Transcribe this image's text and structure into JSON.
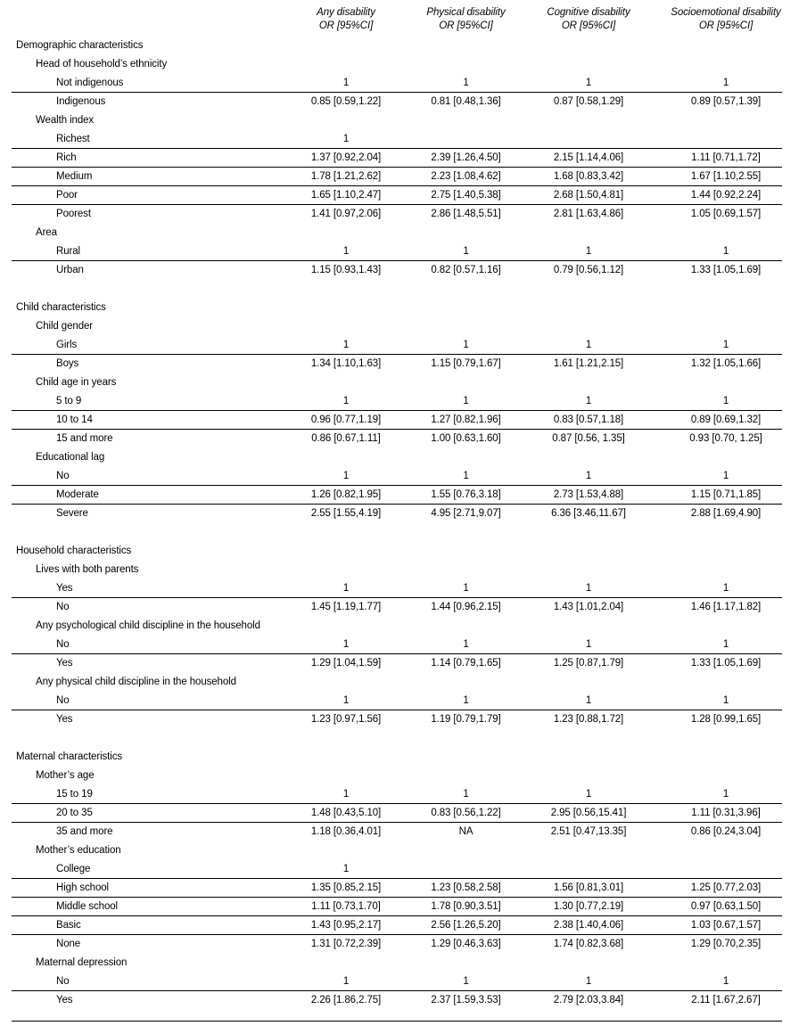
{
  "page": {
    "background": "#ffffff",
    "text_color": "#000000",
    "rule_color": "#000000"
  },
  "table": {
    "value_columns": [
      {
        "title": "Any disability",
        "subtitle": "OR [95%CI]"
      },
      {
        "title": "Physical disability",
        "subtitle": "OR [95%CI]"
      },
      {
        "title": "Cognitive disability",
        "subtitle": "OR [95%CI]"
      },
      {
        "title": "Socioemotional disability",
        "subtitle": "OR [95%CI]"
      }
    ],
    "sections": [
      {
        "title": "Demographic characteristics",
        "groups": [
          {
            "label": "Head of household’s ethnicity",
            "rows": [
              {
                "label": "Not indigenous",
                "ref": true,
                "values": [
                  "1",
                  "1",
                  "1",
                  "1"
                ]
              },
              {
                "label": "Indigenous",
                "ref": false,
                "values": [
                  "0.85 [0.59,1.22]",
                  "0.81 [0.48,1.36]",
                  "0.87 [0.58,1.29]",
                  "0.89 [0.57,1.39]"
                ]
              }
            ]
          },
          {
            "label": "Wealth index",
            "rows": [
              {
                "label": "Richest",
                "ref": true,
                "values": [
                  "1",
                  "",
                  "",
                  ""
                ]
              },
              {
                "label": "Rich",
                "ref": false,
                "values": [
                  "1.37 [0.92,2.04]",
                  "2.39 [1.26,4.50]",
                  "2.15 [1.14,4.06]",
                  "1.11 [0.71,1.72]"
                ]
              },
              {
                "label": "Medium",
                "ref": false,
                "values": [
                  "1.78 [1.21,2.62]",
                  "2.23 [1.08,4.62]",
                  "1.68 [0.83,3.42]",
                  "1.67 [1.10,2.55]"
                ]
              },
              {
                "label": "Poor",
                "ref": false,
                "values": [
                  "1.65 [1.10,2.47]",
                  "2.75 [1.40,5.38]",
                  "2.68 [1.50,4.81]",
                  "1.44 [0.92,2.24]"
                ]
              },
              {
                "label": "Poorest",
                "ref": false,
                "values": [
                  "1.41 [0.97,2.06]",
                  "2.86 [1.48,5.51]",
                  "2.81 [1.63,4.86]",
                  "1.05 [0.69,1.57]"
                ]
              }
            ]
          },
          {
            "label": "Area",
            "rows": [
              {
                "label": "Rural",
                "ref": true,
                "values": [
                  "1",
                  "1",
                  "1",
                  "1"
                ]
              },
              {
                "label": "Urban",
                "ref": false,
                "values": [
                  "1.15 [0.93,1.43]",
                  "0.82 [0.57,1.16]",
                  "0.79 [0.56,1.12]",
                  "1.33 [1.05,1.69]"
                ]
              }
            ]
          }
        ]
      },
      {
        "title": "Child characteristics",
        "groups": [
          {
            "label": "Child gender",
            "rows": [
              {
                "label": "Girls",
                "ref": true,
                "values": [
                  "1",
                  "1",
                  "1",
                  "1"
                ]
              },
              {
                "label": "Boys",
                "ref": false,
                "values": [
                  "1.34 [1.10,1.63]",
                  "1.15 [0.79,1.67]",
                  "1.61 [1.21,2.15]",
                  "1.32 [1.05,1.66]"
                ]
              }
            ]
          },
          {
            "label": "Child age in years",
            "rows": [
              {
                "label": "5 to 9",
                "ref": true,
                "values": [
                  "1",
                  "1",
                  "1",
                  "1"
                ]
              },
              {
                "label": "10 to 14",
                "ref": false,
                "values": [
                  "0.96 [0.77,1.19]",
                  "1.27 [0.82,1.96]",
                  "0.83 [0.57,1.18]",
                  "0.89 [0.69,1.32]"
                ]
              },
              {
                "label": "15 and more",
                "ref": false,
                "values": [
                  "0.86 [0.67,1.11]",
                  "1.00 [0.63,1.60]",
                  "0.87 [0.56, 1.35]",
                  "0.93 [0.70, 1.25]"
                ]
              }
            ]
          },
          {
            "label": "Educational lag",
            "rows": [
              {
                "label": "No",
                "ref": true,
                "values": [
                  "1",
                  "1",
                  "1",
                  "1"
                ]
              },
              {
                "label": "Moderate",
                "ref": false,
                "values": [
                  "1.26 [0.82,1.95]",
                  "1.55 [0.76,3.18]",
                  "2.73 [1.53,4.88]",
                  "1.15 [0.71,1.85]"
                ]
              },
              {
                "label": "Severe",
                "ref": false,
                "values": [
                  "2.55 [1.55,4.19]",
                  "4.95 [2.71,9.07]",
                  "6.36 [3.46,11.67]",
                  "2.88 [1.69,4.90]"
                ]
              }
            ]
          }
        ]
      },
      {
        "title": "Household characteristics",
        "groups": [
          {
            "label": "Lives with both parents",
            "rows": [
              {
                "label": "Yes",
                "ref": true,
                "values": [
                  "1",
                  "1",
                  "1",
                  "1"
                ]
              },
              {
                "label": "No",
                "ref": false,
                "values": [
                  "1.45 [1.19,1.77]",
                  "1.44 [0.96,2.15]",
                  "1.43 [1.01,2.04]",
                  "1.46 [1.17,1.82]"
                ]
              }
            ]
          },
          {
            "label": "Any psychological child discipline in the household",
            "rows": [
              {
                "label": "No",
                "ref": true,
                "values": [
                  "1",
                  "1",
                  "1",
                  "1"
                ]
              },
              {
                "label": "Yes",
                "ref": false,
                "values": [
                  "1.29 [1.04,1.59]",
                  "1.14 [0.79,1.65]",
                  "1.25 [0.87,1.79]",
                  "1.33 [1.05,1.69]"
                ]
              }
            ]
          },
          {
            "label": "Any physical child discipline in the household",
            "rows": [
              {
                "label": "No",
                "ref": true,
                "values": [
                  "1",
                  "1",
                  "1",
                  "1"
                ]
              },
              {
                "label": "Yes",
                "ref": false,
                "values": [
                  "1.23 [0.97,1.56]",
                  "1.19 [0.79,1.79]",
                  "1.23 [0.88,1.72]",
                  "1.28 [0.99,1.65]"
                ]
              }
            ]
          }
        ]
      },
      {
        "title": "Maternal characteristics",
        "groups": [
          {
            "label": "Mother’s age",
            "rows": [
              {
                "label": "15 to 19",
                "ref": true,
                "values": [
                  "1",
                  "1",
                  "1",
                  "1"
                ]
              },
              {
                "label": "20 to 35",
                "ref": false,
                "values": [
                  "1.48 [0.43,5.10]",
                  "0.83 [0.56,1.22]",
                  "2.95 [0.56,15.41]",
                  "1.11 [0.31,3.96]"
                ]
              },
              {
                "label": "35 and more",
                "ref": false,
                "values": [
                  "1.18 [0.36,4.01]",
                  "NA",
                  "2.51 [0.47,13.35]",
                  "0.86 [0.24,3.04]"
                ]
              }
            ]
          },
          {
            "label": "Mother’s education",
            "rows": [
              {
                "label": "College",
                "ref": true,
                "values": [
                  "1",
                  "",
                  "",
                  ""
                ]
              },
              {
                "label": "High school",
                "ref": false,
                "values": [
                  "1.35 [0.85,2.15]",
                  "1.23 [0.58,2.58]",
                  "1.56 [0.81,3.01]",
                  "1.25 [0.77,2.03]"
                ]
              },
              {
                "label": "Middle school",
                "ref": false,
                "values": [
                  "1.11 [0.73,1.70]",
                  "1.78 [0.90,3.51]",
                  "1.30 [0.77,2.19]",
                  "0.97 [0.63,1.50]"
                ]
              },
              {
                "label": "Basic",
                "ref": false,
                "values": [
                  "1.43 [0.95,2.17]",
                  "2.56 [1.26,5.20]",
                  "2.38 [1.40,4.06]",
                  "1.03 [0.67,1.57]"
                ]
              },
              {
                "label": "None",
                "ref": false,
                "values": [
                  "1.31 [0.72,2.39]",
                  "1.29 [0.46,3.63]",
                  "1.74 [0.82,3.68]",
                  "1.29 [0.70,2.35]"
                ]
              }
            ]
          },
          {
            "label": "Maternal depression",
            "rows": [
              {
                "label": "No",
                "ref": true,
                "values": [
                  "1",
                  "1",
                  "1",
                  "1"
                ]
              },
              {
                "label": "Yes",
                "ref": false,
                "values": [
                  "2.26 [1.86,2.75]",
                  "2.37 [1.59,3.53]",
                  "2.79 [2.03,3.84]",
                  "2.11 [1.67,2.67]"
                ]
              }
            ]
          }
        ]
      }
    ]
  }
}
